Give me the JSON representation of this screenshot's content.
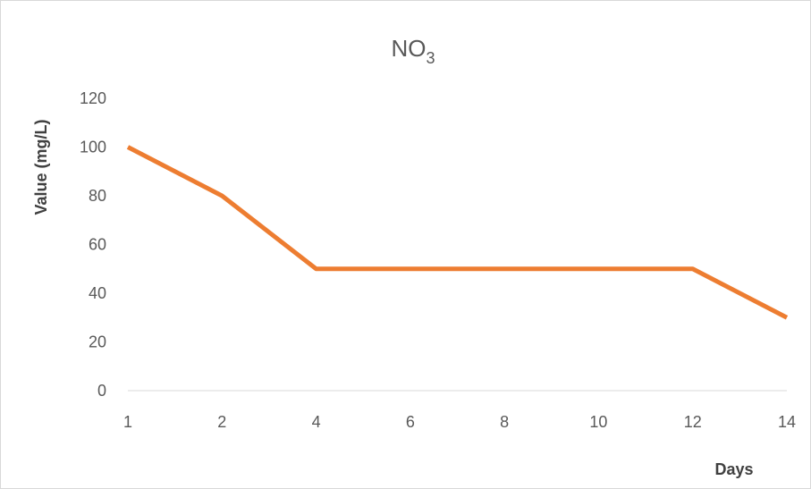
{
  "chart_data": {
    "type": "line",
    "title": "NO",
    "title_subscript": "3",
    "xlabel": "Days",
    "ylabel": "Value (mg/L)",
    "categories": [
      "1",
      "2",
      "4",
      "6",
      "8",
      "10",
      "12",
      "14"
    ],
    "series": [
      {
        "values": [
          100,
          80,
          50,
          50,
          50,
          50,
          50,
          30
        ],
        "color": "#ED7D31"
      }
    ],
    "ylim": [
      0,
      120
    ],
    "yticks": [
      0,
      20,
      40,
      60,
      80,
      100,
      120
    ],
    "grid": false,
    "legend": "none"
  }
}
